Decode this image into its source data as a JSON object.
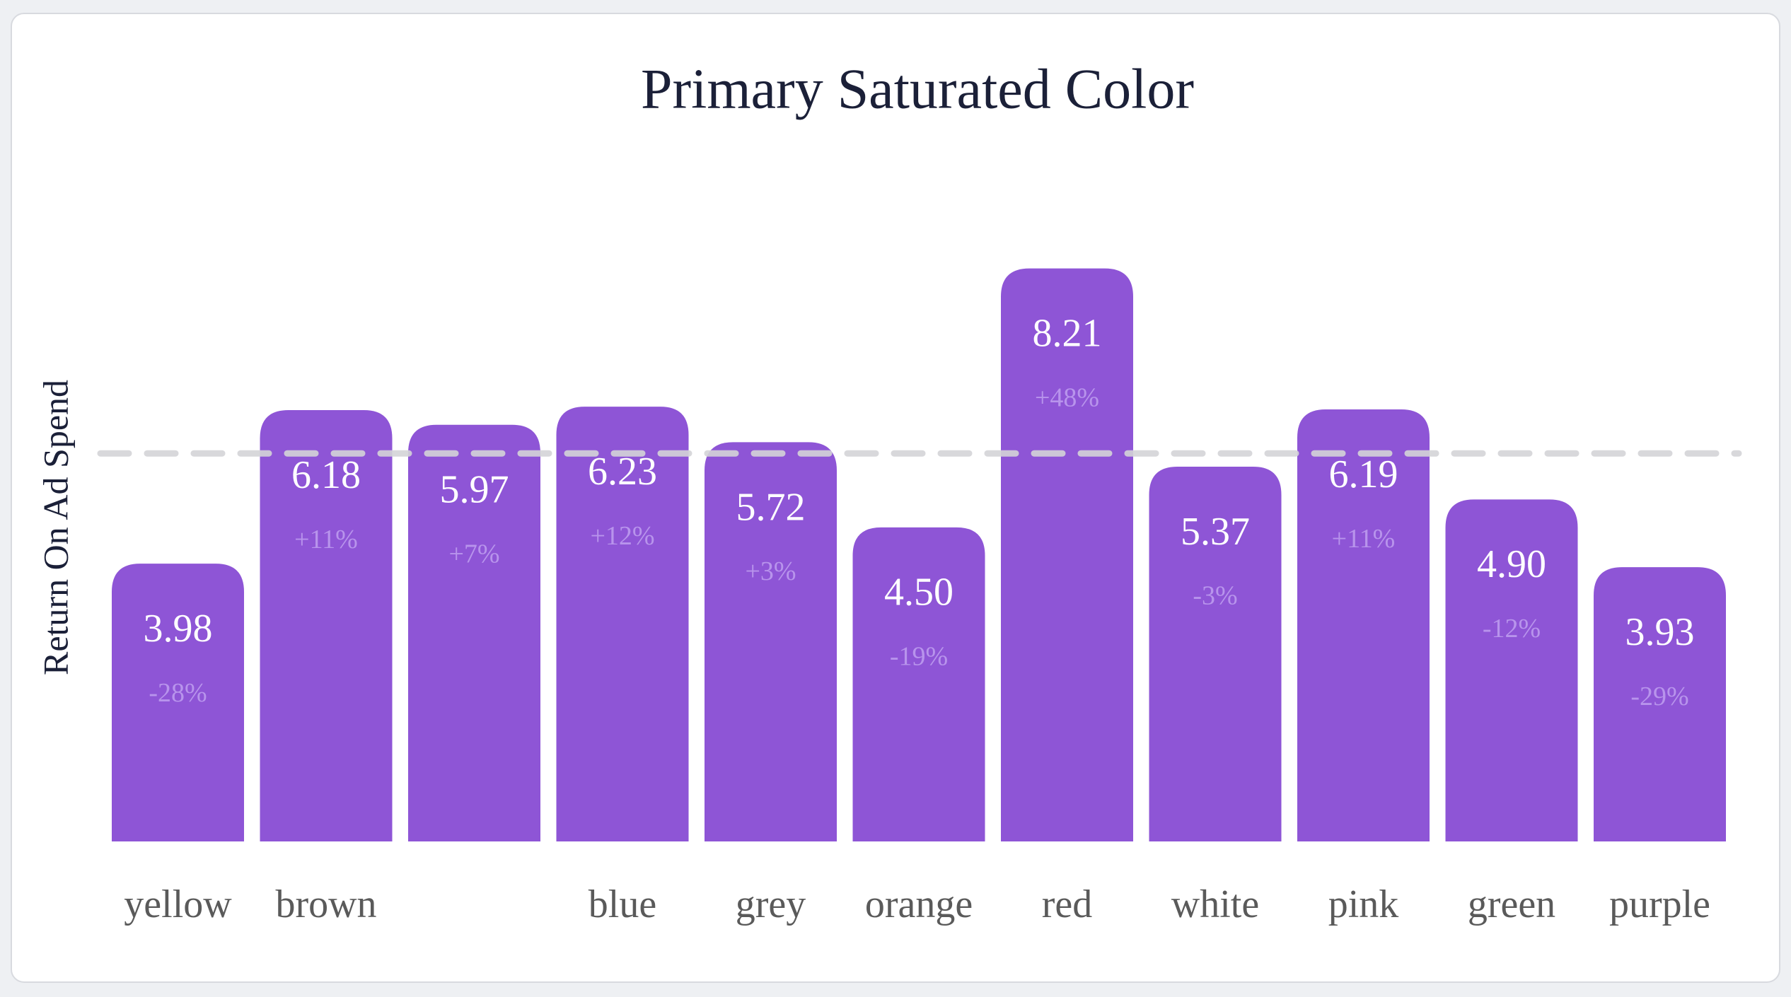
{
  "chart_data": {
    "type": "bar",
    "title": "Primary Saturated Color",
    "y_label": "Return On Ad Spend",
    "categories": [
      "yellow",
      "brown",
      null,
      "blue",
      "grey",
      "orange",
      "red",
      "white",
      "pink",
      "green",
      "purple"
    ],
    "values": [
      3.98,
      6.18,
      5.97,
      6.23,
      5.72,
      4.5,
      8.21,
      5.37,
      6.19,
      4.9,
      3.93
    ],
    "value_labels": [
      "3.98",
      "6.18",
      "5.97",
      "6.23",
      "5.72",
      "4.50",
      "8.21",
      "5.37",
      "6.19",
      "4.90",
      "3.93"
    ],
    "change_labels": [
      "-28%",
      "+11%",
      "+7%",
      "+12%",
      "+3%",
      "-19%",
      "+48%",
      "-3%",
      "+11%",
      "-12%",
      "-29%"
    ],
    "reference_line": 5.56,
    "color": "#8e55d6"
  }
}
